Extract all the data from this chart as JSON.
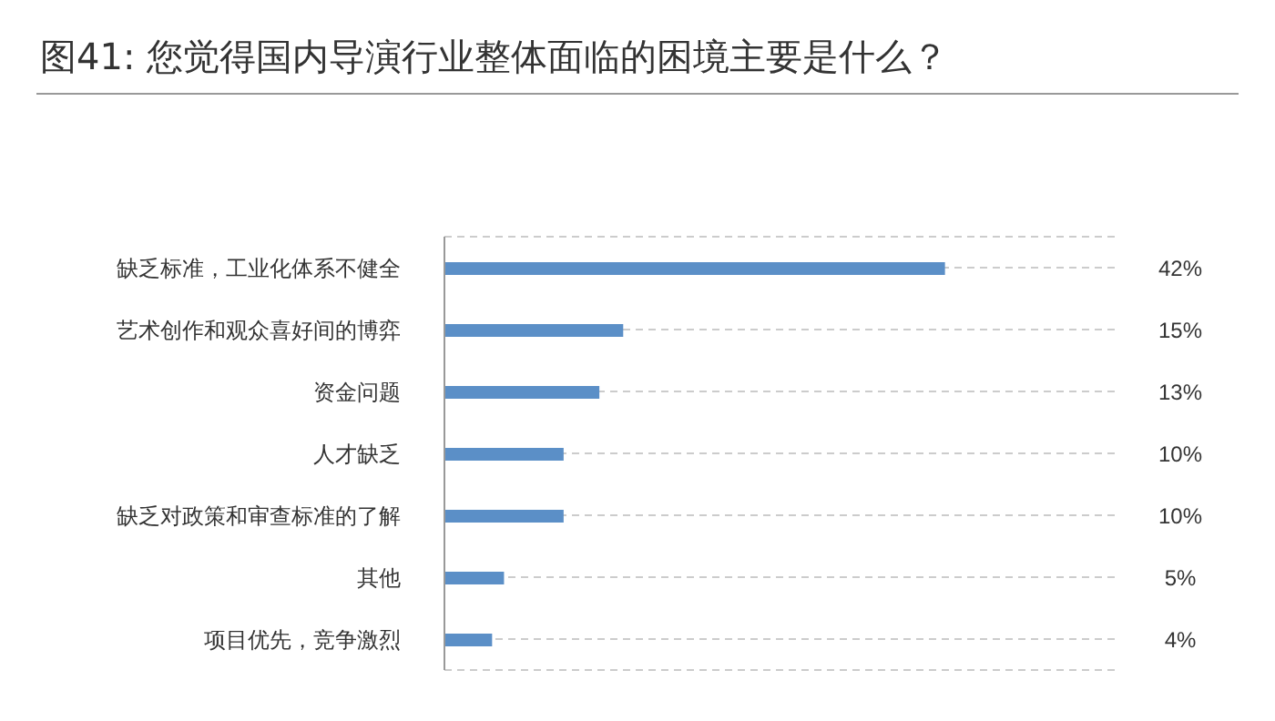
{
  "chart_data": {
    "type": "bar",
    "orientation": "horizontal",
    "title": "图41: 您觉得国内导演行业整体面临的困境主要是什么？",
    "categories": [
      "缺乏标准，工业化体系不健全",
      "艺术创作和观众喜好间的博弈",
      "资金问题",
      "人才缺乏",
      "缺乏对政策和审查标准的了解",
      "其他",
      "项目优先，竞争激烈"
    ],
    "values": [
      42,
      15,
      13,
      10,
      10,
      5,
      4
    ],
    "value_labels": [
      "42%",
      "15%",
      "13%",
      "10%",
      "10%",
      "5%",
      "4%"
    ],
    "color": "#5b8fc7",
    "grid": "y"
  }
}
